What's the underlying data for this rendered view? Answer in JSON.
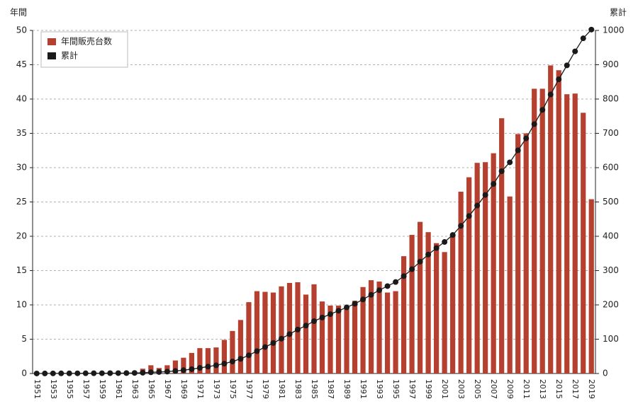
{
  "chart_data": {
    "type": "bar_line",
    "y_label": "年間",
    "y2_label": "累計",
    "categories": [
      "1951",
      null,
      "1953",
      null,
      "1955",
      null,
      "1957",
      null,
      "1959",
      null,
      "1961",
      null,
      "1963",
      null,
      "1965",
      null,
      "1967",
      null,
      "1969",
      null,
      "1971",
      null,
      "1973",
      null,
      "1975",
      null,
      "1977",
      null,
      "1979",
      null,
      "1981",
      null,
      "1983",
      null,
      "1985",
      null,
      "1987",
      null,
      "1989",
      null,
      "1991",
      null,
      "1993",
      null,
      "1995",
      null,
      "1997",
      null,
      "1999",
      null,
      "2001",
      null,
      "2003",
      null,
      "2005",
      null,
      "2007",
      null,
      "2009",
      null,
      "2011",
      null,
      "2013",
      null,
      "2015",
      null,
      "2017",
      null,
      "2019"
    ],
    "series": [
      {
        "name": "年間販売台数",
        "color": "#b5402f",
        "values": [
          0.1,
          0.1,
          0.1,
          0.1,
          0.1,
          0.1,
          0.1,
          0.1,
          0.1,
          0.1,
          0.1,
          0.2,
          0.3,
          0.7,
          1.2,
          0.8,
          1.2,
          1.9,
          2.3,
          3.0,
          3.7,
          3.7,
          3.8,
          4.9,
          6.2,
          7.8,
          10.4,
          12.0,
          11.9,
          11.8,
          12.7,
          13.2,
          13.3,
          11.5,
          13.0,
          10.5,
          9.9,
          9.9,
          9.8,
          10.6,
          12.6,
          13.6,
          13.4,
          11.8,
          12.0,
          17.1,
          20.2,
          22.1,
          20.6,
          19.0,
          17.7,
          20.4,
          26.5,
          28.6,
          30.7,
          30.8,
          32.1,
          37.2,
          25.8,
          34.9,
          35.0,
          41.5,
          41.5,
          44.9,
          44.2,
          40.7,
          40.8,
          38.0,
          25.4
        ]
      },
      {
        "name": "累計",
        "color": "#1a1a1a",
        "axis": "y2",
        "values": [
          0.1,
          0.2,
          0.3,
          0.4,
          0.5,
          0.6,
          0.7,
          0.8,
          0.9,
          1.0,
          1.1,
          1.3,
          1.6,
          2.3,
          3.5,
          4.3,
          5.5,
          7.4,
          9.7,
          12.7,
          16.4,
          20.1,
          23.9,
          28.8,
          35.0,
          42.8,
          53.2,
          65.2,
          77.1,
          88.9,
          101.6,
          114.8,
          128.1,
          139.6,
          152.6,
          163.1,
          173.0,
          182.9,
          192.7,
          203.3,
          215.9,
          229.5,
          242.9,
          254.7,
          266.7,
          283.8,
          304.0,
          326.1,
          346.7,
          365.7,
          383.4,
          403.8,
          430.3,
          458.9,
          489.6,
          520.4,
          552.5,
          589.7,
          615.5,
          650.4,
          685.4,
          726.9,
          768.4,
          813.3,
          857.5,
          898.2,
          939.0,
          977.0,
          1002.4
        ]
      }
    ],
    "ylim": [
      0,
      50
    ],
    "yticks": [
      0,
      5,
      10,
      15,
      20,
      25,
      30,
      35,
      40,
      45,
      50
    ],
    "y2lim": [
      0,
      1000
    ],
    "y2ticks": [
      0,
      100,
      200,
      300,
      400,
      500,
      600,
      700,
      800,
      900,
      1000
    ],
    "grid": true,
    "legend": "top-left"
  }
}
